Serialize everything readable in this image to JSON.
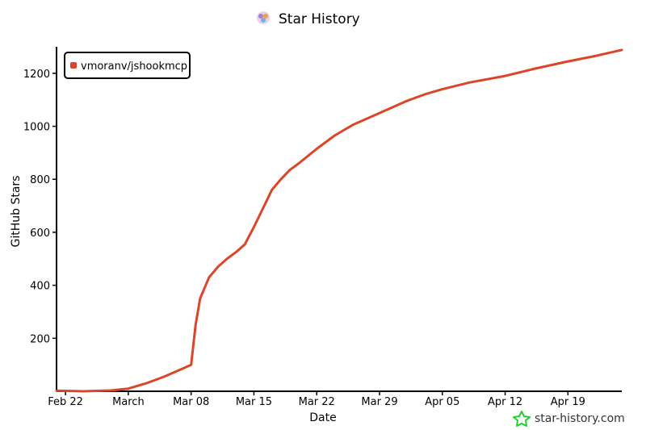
{
  "chart_data": {
    "type": "line",
    "title": "Star History",
    "xlabel": "Date",
    "ylabel": "GitHub Stars",
    "x_axis": {
      "type": "date",
      "range": [
        "2025-02-21",
        "2025-04-25"
      ],
      "ticks": [
        {
          "date": "2025-02-22",
          "label": "Feb 22"
        },
        {
          "date": "2025-03-01",
          "label": "March"
        },
        {
          "date": "2025-03-08",
          "label": "Mar 08"
        },
        {
          "date": "2025-03-15",
          "label": "Mar 15"
        },
        {
          "date": "2025-03-22",
          "label": "Mar 22"
        },
        {
          "date": "2025-03-29",
          "label": "Mar 29"
        },
        {
          "date": "2025-04-05",
          "label": "Apr 05"
        },
        {
          "date": "2025-04-12",
          "label": "Apr 12"
        },
        {
          "date": "2025-04-19",
          "label": "Apr 19"
        }
      ]
    },
    "y_axis": {
      "range": [
        0,
        1300
      ],
      "ticks": [
        200,
        400,
        600,
        800,
        1000,
        1200
      ]
    },
    "legend": {
      "position": "top-left"
    },
    "grid": false,
    "series": [
      {
        "name": "vmoranv/jshookmcp",
        "color": "#dd4528",
        "points": [
          {
            "x": "2025-02-21",
            "y": 2
          },
          {
            "x": "2025-02-24",
            "y": 0
          },
          {
            "x": "2025-02-27",
            "y": 3
          },
          {
            "x": "2025-03-01",
            "y": 10
          },
          {
            "x": "2025-03-03",
            "y": 30
          },
          {
            "x": "2025-03-05",
            "y": 55
          },
          {
            "x": "2025-03-07",
            "y": 85
          },
          {
            "x": "2025-03-08",
            "y": 100
          },
          {
            "x": "2025-03-08T12:00",
            "y": 250
          },
          {
            "x": "2025-03-09",
            "y": 350
          },
          {
            "x": "2025-03-10",
            "y": 430
          },
          {
            "x": "2025-03-11",
            "y": 470
          },
          {
            "x": "2025-03-12",
            "y": 500
          },
          {
            "x": "2025-03-13",
            "y": 525
          },
          {
            "x": "2025-03-14",
            "y": 555
          },
          {
            "x": "2025-03-15",
            "y": 620
          },
          {
            "x": "2025-03-16",
            "y": 690
          },
          {
            "x": "2025-03-17",
            "y": 760
          },
          {
            "x": "2025-03-18",
            "y": 800
          },
          {
            "x": "2025-03-19",
            "y": 835
          },
          {
            "x": "2025-03-20",
            "y": 860
          },
          {
            "x": "2025-03-22",
            "y": 915
          },
          {
            "x": "2025-03-24",
            "y": 965
          },
          {
            "x": "2025-03-26",
            "y": 1005
          },
          {
            "x": "2025-03-29",
            "y": 1050
          },
          {
            "x": "2025-04-01",
            "y": 1095
          },
          {
            "x": "2025-04-03",
            "y": 1120
          },
          {
            "x": "2025-04-05",
            "y": 1140
          },
          {
            "x": "2025-04-08",
            "y": 1165
          },
          {
            "x": "2025-04-12",
            "y": 1190
          },
          {
            "x": "2025-04-15",
            "y": 1215
          },
          {
            "x": "2025-04-19",
            "y": 1245
          },
          {
            "x": "2025-04-22",
            "y": 1265
          },
          {
            "x": "2025-04-25",
            "y": 1288
          }
        ]
      }
    ]
  },
  "branding": {
    "title_icon": "star-history-logo-icon",
    "watermark_icon": "green-star-icon",
    "watermark_text": "star-history.com"
  }
}
